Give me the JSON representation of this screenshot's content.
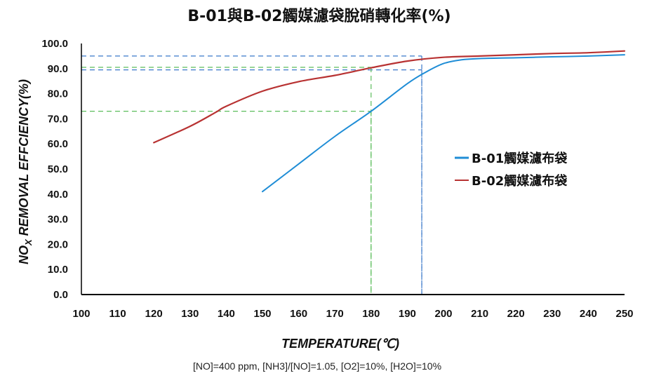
{
  "chart_data": {
    "type": "line",
    "title": "B-01與B-02觸媒濾袋脫硝轉化率(%)",
    "xlabel": "TEMPERATURE(℃)",
    "ylabel_main": "NO",
    "ylabel_sub": "X",
    "ylabel_rest": " REMOVAL EFFCIENCY(%)",
    "xlim": [
      100,
      250
    ],
    "ylim": [
      0,
      100
    ],
    "x_ticks": [
      100,
      110,
      120,
      130,
      140,
      150,
      160,
      170,
      180,
      190,
      200,
      210,
      220,
      230,
      240,
      250
    ],
    "y_ticks": [
      "0.0",
      "10.0",
      "20.0",
      "30.0",
      "40.0",
      "50.0",
      "60.0",
      "70.0",
      "80.0",
      "90.0",
      "100.0"
    ],
    "grid": false,
    "legend_position": "right",
    "series": [
      {
        "name": "B-01觸媒濾布袋",
        "color": "#1f8dd6",
        "x": [
          150,
          160,
          170,
          180,
          190,
          195,
          200,
          205,
          210,
          220,
          230,
          240,
          250
        ],
        "y": [
          41,
          52,
          63,
          73,
          84,
          88.5,
          92,
          93.5,
          94,
          94.3,
          94.7,
          95,
          95.5
        ]
      },
      {
        "name": "B-02觸媒濾布袋",
        "color": "#b83232",
        "x": [
          120,
          130,
          137,
          140,
          150,
          160,
          170,
          180,
          190,
          200,
          210,
          220,
          230,
          240,
          250
        ],
        "y": [
          60.5,
          67,
          72.5,
          75,
          81,
          84.8,
          87.3,
          90.3,
          93,
          94.5,
          95,
          95.5,
          96,
          96.3,
          97
        ]
      }
    ],
    "reference_lines": [
      {
        "color": "#3a78c9",
        "x": 194,
        "y": 89.5
      },
      {
        "color": "#3a78c9",
        "x": 194,
        "y": 95
      },
      {
        "color": "#5cbd5c",
        "x": 180,
        "y": 90.5
      },
      {
        "color": "#5cbd5c",
        "x": 180,
        "y": 73
      }
    ]
  },
  "footnote": "[NO]=400 ppm, [NH3]/[NO]=1.05,  [O2]=10%, [H2O]=10%"
}
